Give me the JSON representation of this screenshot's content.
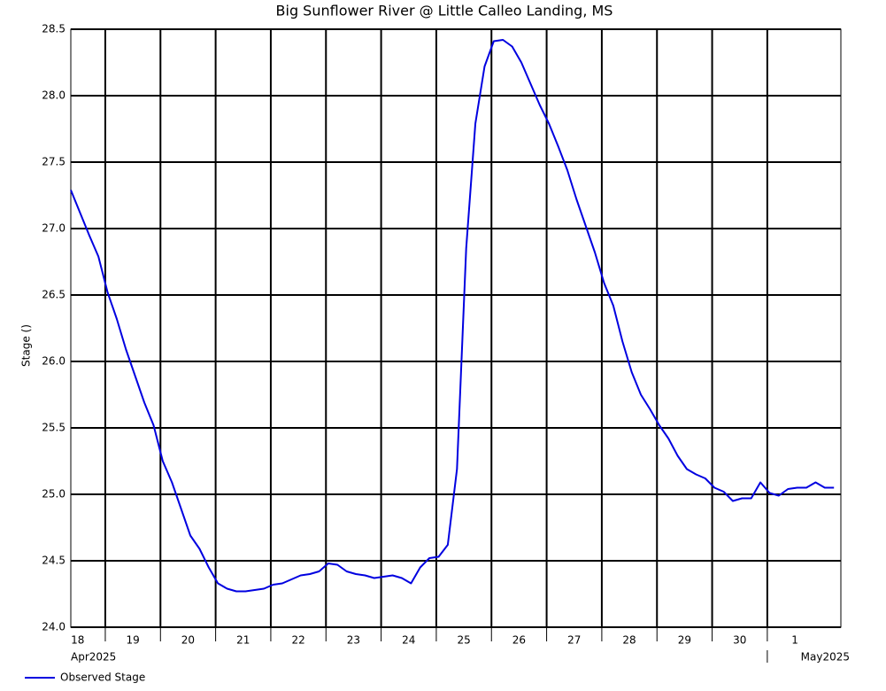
{
  "chart_data": {
    "type": "line",
    "title": "Big Sunflower River @ Little Calleo Landing, MS",
    "y_label": "Stage ()",
    "month_labels": [
      "Apr2025",
      "May2025"
    ],
    "x": [
      "2025-04-18T09:00",
      "2025-04-18T13:00",
      "2025-04-18T17:00",
      "2025-04-18T21:00",
      "2025-04-19T01:00",
      "2025-04-19T05:00",
      "2025-04-19T09:00",
      "2025-04-19T13:00",
      "2025-04-19T17:00",
      "2025-04-19T21:00",
      "2025-04-20T01:00",
      "2025-04-20T05:00",
      "2025-04-20T09:00",
      "2025-04-20T13:00",
      "2025-04-20T17:00",
      "2025-04-20T21:00",
      "2025-04-21T01:00",
      "2025-04-21T05:00",
      "2025-04-21T09:00",
      "2025-04-21T13:00",
      "2025-04-21T17:00",
      "2025-04-21T21:00",
      "2025-04-22T01:00",
      "2025-04-22T05:00",
      "2025-04-22T09:00",
      "2025-04-22T13:00",
      "2025-04-22T17:00",
      "2025-04-22T21:00",
      "2025-04-23T01:00",
      "2025-04-23T05:00",
      "2025-04-23T09:00",
      "2025-04-23T13:00",
      "2025-04-23T17:00",
      "2025-04-23T21:00",
      "2025-04-24T01:00",
      "2025-04-24T05:00",
      "2025-04-24T09:00",
      "2025-04-24T13:00",
      "2025-04-24T17:00",
      "2025-04-24T21:00",
      "2025-04-25T01:00",
      "2025-04-25T05:00",
      "2025-04-25T09:00",
      "2025-04-25T13:00",
      "2025-04-25T17:00",
      "2025-04-25T21:00",
      "2025-04-26T01:00",
      "2025-04-26T05:00",
      "2025-04-26T09:00",
      "2025-04-26T13:00",
      "2025-04-26T17:00",
      "2025-04-26T21:00",
      "2025-04-27T01:00",
      "2025-04-27T05:00",
      "2025-04-27T09:00",
      "2025-04-27T13:00",
      "2025-04-27T17:00",
      "2025-04-27T21:00",
      "2025-04-28T01:00",
      "2025-04-28T05:00",
      "2025-04-28T09:00",
      "2025-04-28T13:00",
      "2025-04-28T17:00",
      "2025-04-28T21:00",
      "2025-04-29T01:00",
      "2025-04-29T05:00",
      "2025-04-29T09:00",
      "2025-04-29T13:00",
      "2025-04-29T17:00",
      "2025-04-29T21:00",
      "2025-04-30T01:00",
      "2025-04-30T05:00",
      "2025-04-30T09:00",
      "2025-04-30T13:00",
      "2025-04-30T17:00",
      "2025-04-30T21:00",
      "2025-05-01T01:00",
      "2025-05-01T05:00",
      "2025-05-01T09:00",
      "2025-05-01T13:00",
      "2025-05-01T17:00",
      "2025-05-01T21:00",
      "2025-05-02T01:00",
      "2025-05-02T05:00"
    ],
    "series": [
      {
        "name": "Observed Stage",
        "color": "#0000e0",
        "values": [
          27.29,
          27.12,
          26.95,
          26.79,
          26.52,
          26.32,
          26.09,
          25.89,
          25.69,
          25.52,
          25.25,
          25.09,
          24.89,
          24.69,
          24.59,
          24.45,
          24.33,
          24.29,
          24.27,
          24.27,
          24.28,
          24.29,
          24.32,
          24.33,
          24.36,
          24.39,
          24.4,
          24.42,
          24.48,
          24.47,
          24.42,
          24.4,
          24.39,
          24.37,
          24.38,
          24.39,
          24.37,
          24.33,
          24.45,
          24.52,
          24.53,
          24.62,
          25.19,
          26.85,
          27.79,
          28.22,
          28.41,
          28.42,
          28.37,
          28.25,
          28.09,
          27.93,
          27.79,
          27.62,
          27.44,
          27.22,
          27.02,
          26.82,
          26.59,
          26.42,
          26.15,
          25.92,
          25.75,
          25.64,
          25.52,
          25.42,
          25.29,
          25.19,
          25.15,
          25.12,
          25.05,
          25.02,
          24.95,
          24.97,
          24.97,
          25.09,
          25.01,
          24.99,
          25.04,
          25.05,
          25.05,
          25.09,
          25.05,
          25.05
        ]
      }
    ],
    "xlim": [
      "2025-04-18T09:00",
      "2025-05-02T08:00"
    ],
    "xticks": [
      {
        "value": "2025-04-18T00:00",
        "label": "18"
      },
      {
        "value": "2025-04-19T00:00",
        "label": "19"
      },
      {
        "value": "2025-04-20T00:00",
        "label": "20"
      },
      {
        "value": "2025-04-21T00:00",
        "label": "21"
      },
      {
        "value": "2025-04-22T00:00",
        "label": "22"
      },
      {
        "value": "2025-04-23T00:00",
        "label": "23"
      },
      {
        "value": "2025-04-24T00:00",
        "label": "24"
      },
      {
        "value": "2025-04-25T00:00",
        "label": "25"
      },
      {
        "value": "2025-04-26T00:00",
        "label": "26"
      },
      {
        "value": "2025-04-27T00:00",
        "label": "27"
      },
      {
        "value": "2025-04-28T00:00",
        "label": "28"
      },
      {
        "value": "2025-04-29T00:00",
        "label": "29"
      },
      {
        "value": "2025-04-30T00:00",
        "label": "30"
      },
      {
        "value": "2025-05-01T00:00",
        "label": "1"
      }
    ],
    "ylim": [
      24,
      28.5
    ],
    "yticks": [
      {
        "value": 24,
        "label": "24.0"
      },
      24.5,
      {
        "value": 25,
        "label": "25.0"
      },
      25.5,
      {
        "value": 26,
        "label": "26.0"
      },
      26.5,
      {
        "value": 27,
        "label": "27.0"
      },
      27.5,
      {
        "value": 28,
        "label": "28.0"
      },
      28.5
    ],
    "grid": true,
    "legend": "bottom-left"
  }
}
